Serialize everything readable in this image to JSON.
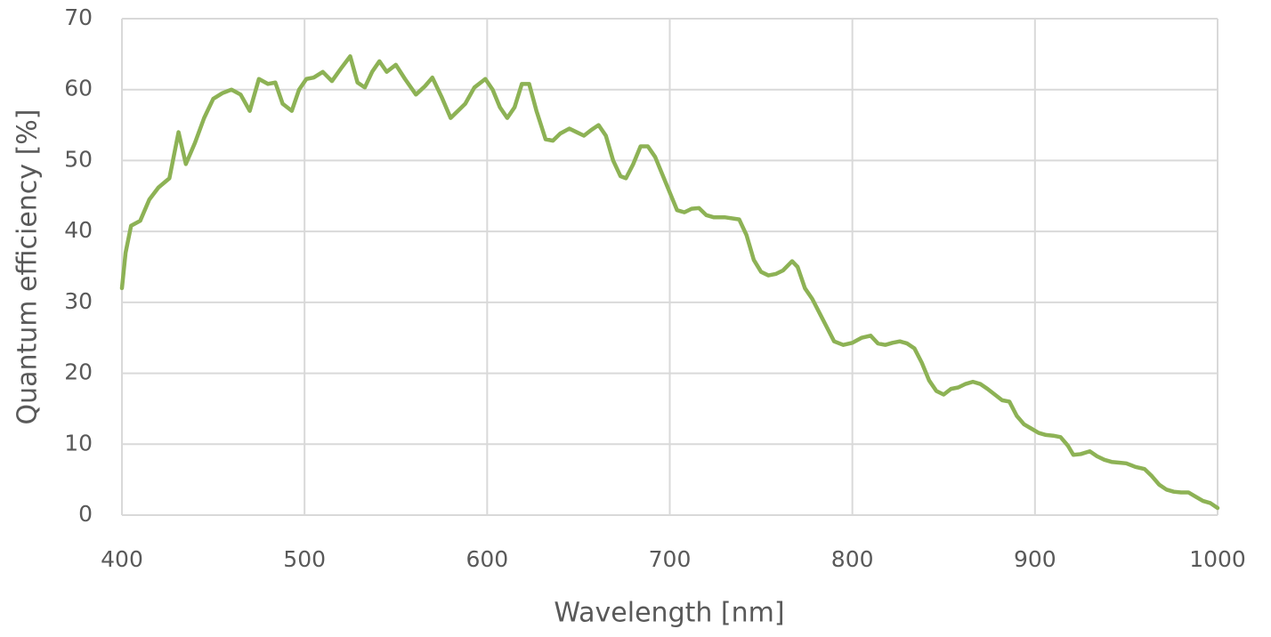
{
  "chart_data": {
    "type": "line",
    "xlabel": "Wavelength [nm]",
    "ylabel": "Quantum efficiency [%]",
    "color": "#8db255",
    "grid": true,
    "xlim": [
      400,
      1000
    ],
    "xticks": [
      400,
      500,
      600,
      700,
      800,
      900,
      1000
    ],
    "ylim": [
      0,
      70
    ],
    "yticks": [
      0,
      10,
      20,
      30,
      40,
      50,
      60,
      70
    ],
    "x": [
      400,
      402,
      405,
      410,
      415,
      420,
      426,
      431,
      435,
      440,
      445,
      450,
      455,
      460,
      465,
      470,
      475,
      480,
      484,
      488,
      493,
      497,
      501,
      505,
      510,
      515,
      520,
      525,
      529,
      533,
      537,
      541,
      545,
      550,
      555,
      561,
      566,
      570,
      575,
      580,
      584,
      588,
      593,
      599,
      603,
      607,
      611,
      615,
      619,
      623,
      627,
      632,
      636,
      640,
      645,
      649,
      653,
      657,
      661,
      665,
      669,
      673,
      676,
      680,
      684,
      688,
      692,
      696,
      700,
      704,
      708,
      712,
      716,
      720,
      724,
      730,
      738,
      742,
      746,
      750,
      754,
      758,
      762,
      767,
      770,
      774,
      778,
      782,
      786,
      790,
      795,
      800,
      805,
      810,
      814,
      818,
      822,
      826,
      830,
      834,
      838,
      842,
      846,
      850,
      854,
      858,
      862,
      866,
      870,
      874,
      878,
      882,
      886,
      890,
      894,
      898,
      902,
      906,
      910,
      914,
      918,
      921,
      925,
      930,
      934,
      938,
      942,
      946,
      950,
      955,
      960,
      964,
      968,
      972,
      976,
      980,
      984,
      988,
      992,
      996,
      1000
    ],
    "values": [
      32,
      37,
      40.8,
      41.5,
      44.5,
      46.2,
      47.5,
      54,
      49.5,
      52.5,
      56,
      58.7,
      59.5,
      60,
      59.3,
      57,
      61.5,
      60.8,
      61,
      58,
      57,
      60,
      61.5,
      61.7,
      62.5,
      61.2,
      63,
      64.7,
      61,
      60.3,
      62.5,
      64,
      62.5,
      63.5,
      61.5,
      59.3,
      60.5,
      61.7,
      59,
      56,
      57,
      58,
      60.3,
      61.5,
      60,
      57.5,
      56,
      57.5,
      60.8,
      60.8,
      57,
      53,
      52.8,
      53.8,
      54.5,
      54,
      53.5,
      54.3,
      55,
      53.5,
      50,
      47.8,
      47.5,
      49.5,
      52,
      52,
      50.5,
      48,
      45.5,
      43,
      42.7,
      43.2,
      43.3,
      42.3,
      42,
      42,
      41.7,
      39.5,
      36,
      34.3,
      33.8,
      34,
      34.5,
      35.8,
      35,
      32,
      30.5,
      28.5,
      26.5,
      24.5,
      24,
      24.3,
      25,
      25.3,
      24.2,
      24,
      24.3,
      24.5,
      24.2,
      23.5,
      21.5,
      19,
      17.5,
      17,
      17.8,
      18,
      18.5,
      18.8,
      18.5,
      17.8,
      17,
      16.2,
      16,
      14,
      12.8,
      12.2,
      11.6,
      11.3,
      11.2,
      11,
      9.8,
      8.5,
      8.6,
      9,
      8.3,
      7.8,
      7.5,
      7.4,
      7.3,
      6.8,
      6.5,
      5.5,
      4.3,
      3.6,
      3.3,
      3.2,
      3.2,
      2.6,
      2,
      1.7,
      1
    ]
  }
}
